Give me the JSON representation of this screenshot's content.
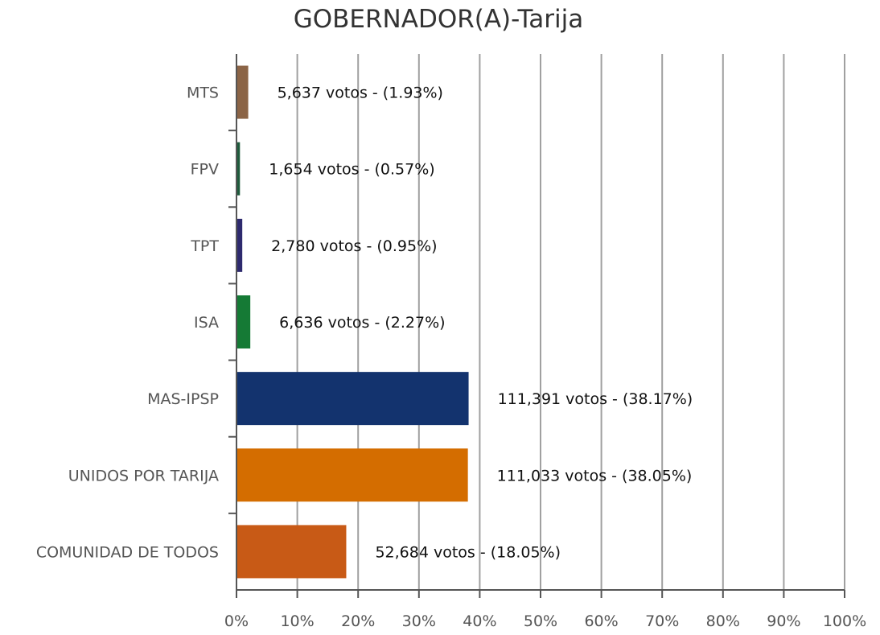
{
  "chart_data": {
    "type": "bar",
    "orientation": "horizontal",
    "title": "GOBERNADOR(A)-Tarija",
    "xlabel": "",
    "ylabel": "",
    "xlim": [
      0,
      100
    ],
    "grid": true,
    "x_ticks": [
      "0%",
      "10%",
      "20%",
      "30%",
      "40%",
      "50%",
      "60%",
      "70%",
      "80%",
      "90%",
      "100%"
    ],
    "categories": [
      "MTS",
      "FPV",
      "TPT",
      "ISA",
      "MAS-IPSP",
      "UNIDOS POR TARIJA",
      "COMUNIDAD DE TODOS"
    ],
    "values": [
      1.93,
      0.57,
      0.95,
      2.27,
      38.17,
      38.05,
      18.05
    ],
    "votes": [
      5637,
      1654,
      2780,
      6636,
      111391,
      111033,
      52684
    ],
    "data_labels": [
      "5,637 votos - (1.93%)",
      "1,654 votos - (0.57%)",
      "2,780 votos - (0.95%)",
      "6,636 votos - (2.27%)",
      "111,391 votos - (38.17%)",
      "111,033 votos - (38.05%)",
      "52,684 votos - (18.05%)"
    ],
    "colors": [
      "#8b6446",
      "#1e5a3c",
      "#2e2a6e",
      "#157a35",
      "#13336e",
      "#d46d00",
      "#c85a16"
    ]
  }
}
